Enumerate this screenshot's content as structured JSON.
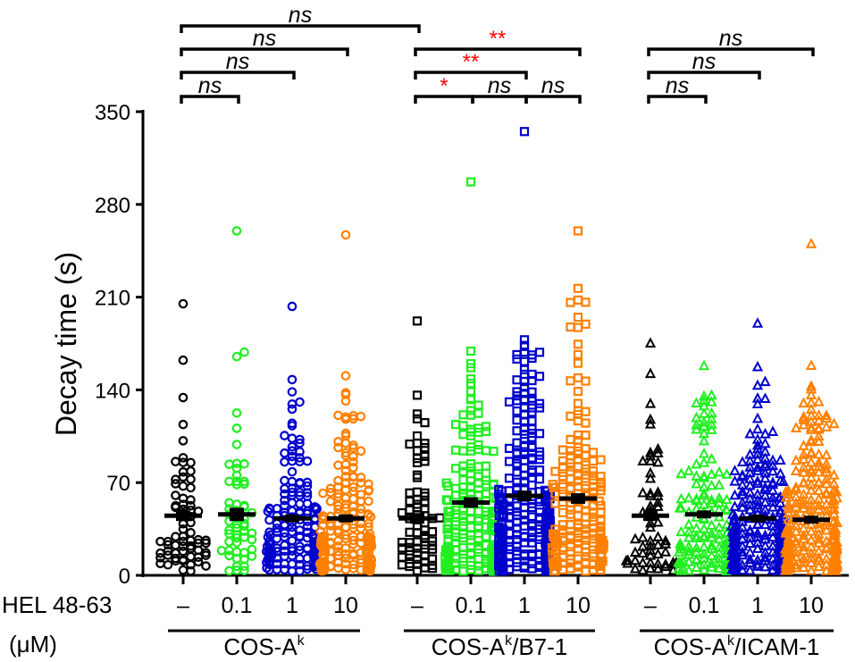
{
  "chart_data": {
    "type": "scatter",
    "title": "",
    "ylabel": "Decay time (s)",
    "ylim": [
      0,
      350
    ],
    "yticks": [
      "0",
      "70",
      "140",
      "210",
      "280",
      "350"
    ],
    "xlabel_line1": "HEL 48-63",
    "xlabel_line2": "(μM)",
    "groups": [
      "COS-A",
      "COS-A",
      "COS-A"
    ],
    "group_sup": [
      "k",
      "k",
      "k"
    ],
    "group_suffix": [
      "",
      "/B7-1",
      "/ICAM-1"
    ],
    "categories": [
      "–",
      "0.1",
      "1",
      "10",
      "–",
      "0.1",
      "1",
      "10",
      "–",
      "0.1",
      "1",
      "10"
    ],
    "series": [
      {
        "group": 0,
        "label": "–",
        "color": "#000000",
        "marker": "circle",
        "mean": 45,
        "sem": 4,
        "n": 70,
        "max": 205
      },
      {
        "group": 0,
        "label": "0.1",
        "color": "#22ee22",
        "marker": "circle",
        "mean": 46,
        "sem": 5,
        "n": 55,
        "max": 260
      },
      {
        "group": 0,
        "label": "1",
        "color": "#0000cc",
        "marker": "circle",
        "mean": 43,
        "sem": 3,
        "n": 160,
        "max": 203
      },
      {
        "group": 0,
        "label": "10",
        "color": "#ff8000",
        "marker": "circle",
        "mean": 43,
        "sem": 3,
        "n": 200,
        "max": 257
      },
      {
        "group": 1,
        "label": "–",
        "color": "#000000",
        "marker": "square",
        "mean": 43,
        "sem": 4,
        "n": 70,
        "max": 192
      },
      {
        "group": 1,
        "label": "0.1",
        "color": "#22ee22",
        "marker": "square",
        "mean": 55,
        "sem": 4,
        "n": 200,
        "max": 297
      },
      {
        "group": 1,
        "label": "1",
        "color": "#0000cc",
        "marker": "square",
        "mean": 60,
        "sem": 4,
        "n": 280,
        "max": 335
      },
      {
        "group": 1,
        "label": "10",
        "color": "#ff8000",
        "marker": "square",
        "mean": 58,
        "sem": 4,
        "n": 200,
        "max": 260
      },
      {
        "group": 2,
        "label": "–",
        "color": "#000000",
        "marker": "triangle",
        "mean": 45,
        "sem": 4,
        "n": 60,
        "max": 175
      },
      {
        "group": 2,
        "label": "0.1",
        "color": "#22ee22",
        "marker": "triangle",
        "mean": 46,
        "sem": 3,
        "n": 140,
        "max": 158
      },
      {
        "group": 2,
        "label": "1",
        "color": "#0000cc",
        "marker": "triangle",
        "mean": 43,
        "sem": 3,
        "n": 250,
        "max": 190
      },
      {
        "group": 2,
        "label": "10",
        "color": "#ff8000",
        "marker": "triangle",
        "mean": 42,
        "sem": 3,
        "n": 260,
        "max": 250
      }
    ],
    "comparisons": [
      {
        "from": 0,
        "to": 4,
        "level": 4,
        "label": "ns",
        "significant": false
      },
      {
        "from": 0,
        "to": 3,
        "level": 3,
        "label": "ns",
        "significant": false
      },
      {
        "from": 0,
        "to": 2,
        "level": 2,
        "label": "ns",
        "significant": false
      },
      {
        "from": 0,
        "to": 1,
        "level": 1,
        "label": "ns",
        "significant": false
      },
      {
        "from": 4,
        "to": 7,
        "level": 3,
        "label": "**",
        "significant": true
      },
      {
        "from": 4,
        "to": 6,
        "level": 2,
        "label": "**",
        "significant": true
      },
      {
        "from": 4,
        "to": 5,
        "level": 1,
        "label": "*",
        "significant": true
      },
      {
        "from": 5,
        "to": 6,
        "level": 1,
        "label": "ns",
        "significant": false
      },
      {
        "from": 6,
        "to": 7,
        "level": 1,
        "label": "ns",
        "significant": false
      },
      {
        "from": 8,
        "to": 11,
        "level": 3,
        "label": "ns",
        "significant": false
      },
      {
        "from": 8,
        "to": 10,
        "level": 2,
        "label": "ns",
        "significant": false
      },
      {
        "from": 8,
        "to": 9,
        "level": 1,
        "label": "ns",
        "significant": false
      }
    ],
    "sig_color": "#ff0000"
  }
}
